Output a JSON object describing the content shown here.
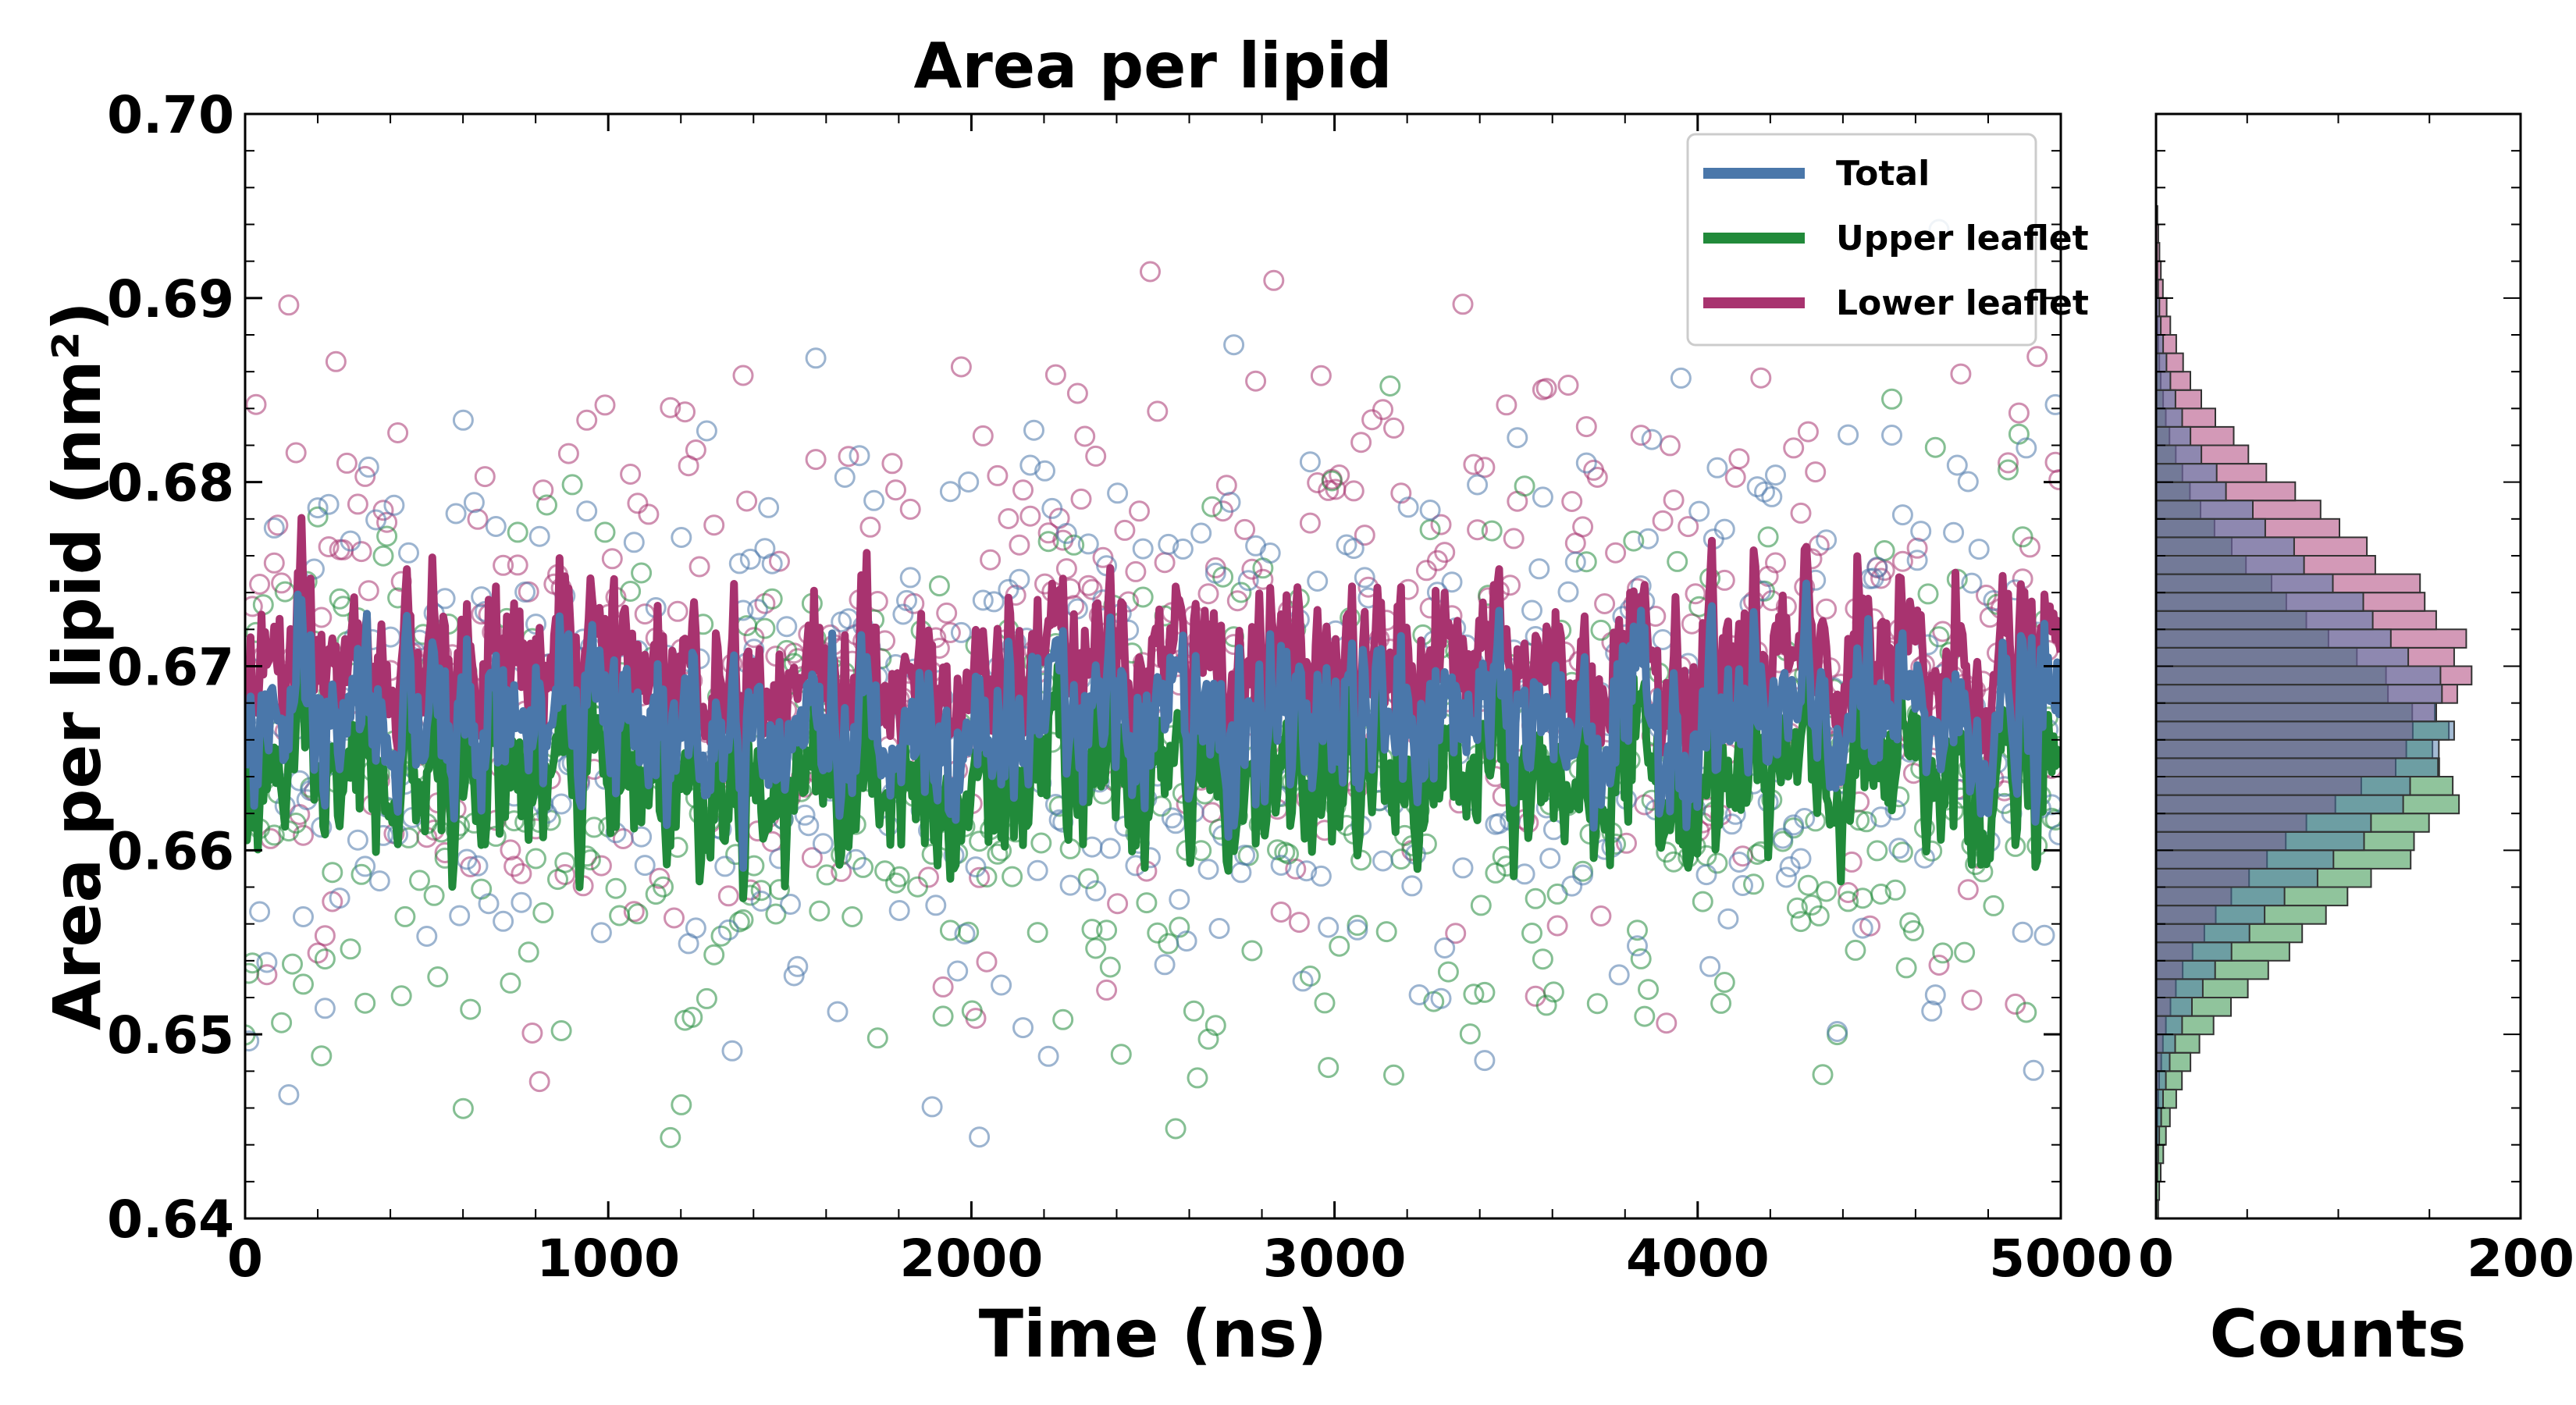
{
  "chart_data": [
    {
      "type": "line",
      "title": "Area per lipid",
      "xlabel": "Time (ns)",
      "ylabel": "Area per lipid (nm²)",
      "xlim": [
        0,
        5000
      ],
      "ylim": [
        0.64,
        0.7
      ],
      "xticks": [
        0,
        1000,
        2000,
        3000,
        4000,
        5000
      ],
      "xtick_labels": [
        "0",
        "1000",
        "2000",
        "3000",
        "4000",
        "5000"
      ],
      "yticks": [
        0.64,
        0.65,
        0.66,
        0.67,
        0.68,
        0.69,
        0.7
      ],
      "ytick_labels": [
        "0.64",
        "0.65",
        "0.66",
        "0.67",
        "0.68",
        "0.69",
        "0.70"
      ],
      "legend_position": "top-right",
      "series": [
        {
          "name": "Total",
          "color": "#4a77aa",
          "mean": 0.667,
          "running_avg_sd": 0.0022,
          "raw_sd": 0.0075,
          "markers": "open circles"
        },
        {
          "name": "Upper leaflet",
          "color": "#218a3a",
          "mean": 0.664,
          "running_avg_sd": 0.0022,
          "raw_sd": 0.0075,
          "markers": "open circles"
        },
        {
          "name": "Lower leaflet",
          "color": "#a8336f",
          "mean": 0.67,
          "running_avg_sd": 0.0022,
          "raw_sd": 0.0075,
          "markers": "open circles"
        }
      ]
    },
    {
      "type": "bar",
      "orientation": "horizontal histogram",
      "xlabel": "Counts",
      "xlim": [
        0,
        200
      ],
      "xticks": [
        0,
        200
      ],
      "xtick_labels": [
        "0",
        "200"
      ],
      "ylim": [
        0.64,
        0.7
      ],
      "bin_width": 0.001,
      "series": [
        {
          "name": "Total",
          "color": "#4a77aa",
          "mean": 0.667,
          "sd": 0.0075,
          "peak_count": 163
        },
        {
          "name": "Upper leaflet",
          "color": "#218a3a",
          "mean": 0.664,
          "sd": 0.0075,
          "peak_count": 161
        },
        {
          "name": "Lower leaflet",
          "color": "#a8336f",
          "mean": 0.67,
          "sd": 0.0075,
          "peak_count": 165
        }
      ]
    }
  ]
}
